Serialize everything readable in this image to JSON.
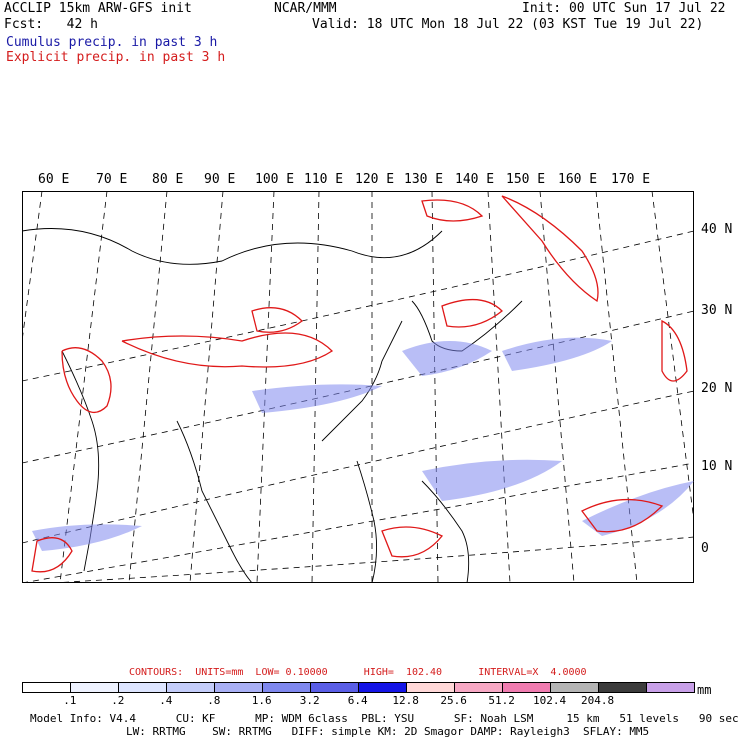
{
  "header": {
    "model": "ACCLIP 15km ARW-GFS init",
    "fcst": "Fcst:   42 h",
    "center": "NCAR/MMM",
    "init": "Init: 00 UTC Sun 17 Jul 22",
    "valid": "Valid: 18 UTC Mon 18 Jul 22 (03 KST Tue 19 Jul 22)",
    "cumulus": "Cumulus precip. in past 3 h",
    "explicit": "Explicit precip. in past 3 h"
  },
  "lon_labels": [
    "60 E",
    "70 E",
    "80 E",
    "90 E",
    "100 E",
    "110 E",
    "120 E",
    "130 E",
    "140 E",
    "150 E",
    "160 E",
    "170 E"
  ],
  "lat_labels": [
    "40 N",
    "30 N",
    "20 N",
    "10 N",
    "0"
  ],
  "contours": "CONTOURS:  UNITS=mm  LOW= 0.10000      HIGH=  102.40      INTERVAL=X  4.0000",
  "legend": {
    "unit": "mm",
    "values": [
      ".1",
      ".2",
      ".4",
      ".8",
      "1.6",
      "3.2",
      "6.4",
      "12.8",
      "25.6",
      "51.2",
      "102.4",
      "204.8"
    ],
    "colors": [
      "#ffffff",
      "#eef2ff",
      "#dde5ff",
      "#c4cdfa",
      "#a9b0f5",
      "#7f88ee",
      "#5a5ee6",
      "#1414e6",
      "#ffd8d8",
      "#f7a8c4",
      "#f07cb0",
      "#b4b4b4",
      "#3c3c3c",
      "#c8a0e8"
    ]
  },
  "footer": {
    "line1": "Model Info: V4.4      CU: KF      MP: WDM 6class  PBL: YSU      SF: Noah LSM     15 km   51 levels   90 sec",
    "line2": "LW: RRTMG    SW: RRTMG   DIFF: simple KM: 2D Smagor DAMP: Rayleigh3  SFLAY: MM5"
  }
}
